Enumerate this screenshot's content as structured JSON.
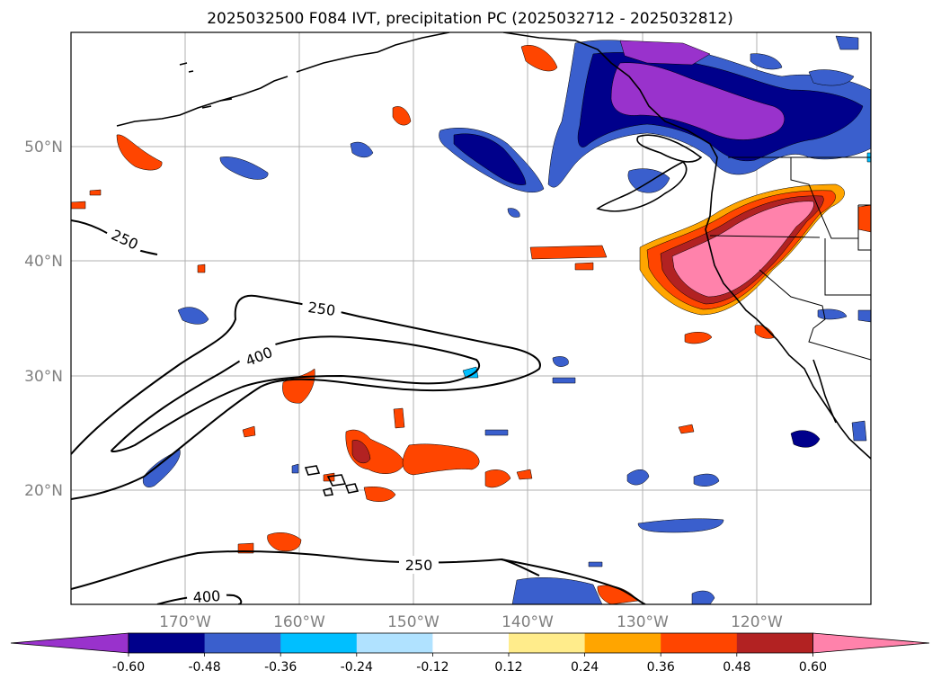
{
  "title": "2025032500 F084 IVT, precipitation PC (2025032712 - 2025032812)",
  "axes": {
    "lon_ticks": [
      "170°W",
      "160°W",
      "150°W",
      "140°W",
      "130°W",
      "120°W"
    ],
    "lat_ticks": [
      "50°N",
      "40°N",
      "30°N",
      "20°N"
    ],
    "lon_range": [
      -180,
      -110
    ],
    "lat_range": [
      10,
      60
    ]
  },
  "colorbar": {
    "colors": [
      "#9932cc",
      "#00008b",
      "#3a5fcd",
      "#00bfff",
      "#b0e2ff",
      "#ffffff",
      "#ffec8b",
      "#ffa500",
      "#ff4500",
      "#b22222",
      "#ff82ab"
    ],
    "ticks": [
      "-0.60",
      "-0.48",
      "-0.36",
      "-0.24",
      "-0.12",
      "0.12",
      "0.24",
      "0.36",
      "0.48",
      "0.60"
    ],
    "extend": "both"
  },
  "contour_labels": [
    "250",
    "250",
    "400",
    "250",
    "400"
  ],
  "chart_data": {
    "type": "map",
    "fields": [
      "IVT contours",
      "precipitation PC shading"
    ],
    "ivt_contour_levels": [
      250,
      400
    ],
    "pc_levels": [
      -0.6,
      -0.48,
      -0.36,
      -0.24,
      -0.12,
      0.12,
      0.24,
      0.36,
      0.48,
      0.6
    ]
  }
}
